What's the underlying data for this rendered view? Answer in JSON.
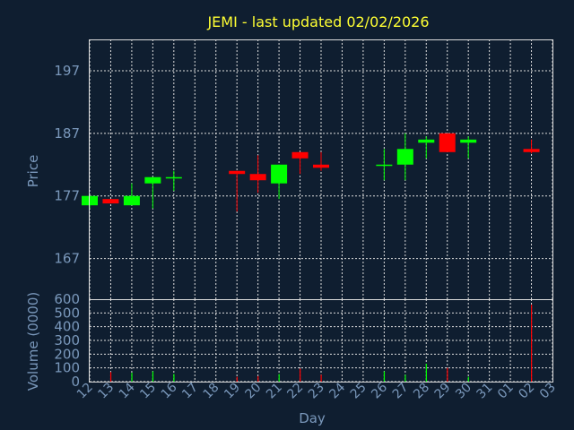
{
  "colors": {
    "background": "#0f1e30",
    "title": "#ffff33",
    "axis_text": "#7a98bb",
    "grid": "#dddddd",
    "up": "#00ff00",
    "down": "#ff0000"
  },
  "chart_data": {
    "type": "candlestick",
    "title": "JEMI - last updated 02/02/2026",
    "xlabel": "Day",
    "price": {
      "ylabel": "Price",
      "ylim": [
        160.5,
        202
      ],
      "ticks": [
        167,
        177,
        187,
        197
      ]
    },
    "volume": {
      "ylabel": "Volume (0000)",
      "ylim": [
        0,
        600
      ],
      "ticks": [
        0,
        100,
        200,
        300,
        400,
        500,
        600
      ]
    },
    "x_tick_labels": [
      "12",
      "13",
      "14",
      "15",
      "16",
      "17",
      "18",
      "19",
      "20",
      "21",
      "22",
      "23",
      "24",
      "25",
      "26",
      "27",
      "28",
      "29",
      "30",
      "31",
      "01",
      "02",
      "03"
    ],
    "candles": [
      {
        "day": "12",
        "open": 175.5,
        "high": 177.0,
        "low": 175.0,
        "close": 177.0,
        "volume": 0
      },
      {
        "day": "13",
        "open": 176.5,
        "high": 176.5,
        "low": 175.8,
        "close": 175.8,
        "volume": 70
      },
      {
        "day": "14",
        "open": 175.5,
        "high": 179.0,
        "low": 175.5,
        "close": 177.0,
        "volume": 65
      },
      {
        "day": "15",
        "open": 179.0,
        "high": 180.0,
        "low": 175.0,
        "close": 180.0,
        "volume": 75
      },
      {
        "day": "16",
        "open": 179.8,
        "high": 181.0,
        "low": 177.8,
        "close": 180.0,
        "volume": 55
      },
      {
        "day": "19",
        "open": 181.0,
        "high": 181.0,
        "low": 174.5,
        "close": 180.5,
        "volume": 35
      },
      {
        "day": "20",
        "open": 180.5,
        "high": 183.5,
        "low": 177.5,
        "close": 179.5,
        "volume": 40
      },
      {
        "day": "21",
        "open": 179.0,
        "high": 182.0,
        "low": 176.5,
        "close": 182.0,
        "volume": 55
      },
      {
        "day": "22",
        "open": 184.0,
        "high": 184.0,
        "low": 180.5,
        "close": 183.0,
        "volume": 95
      },
      {
        "day": "23",
        "open": 182.0,
        "high": 184.0,
        "low": 181.0,
        "close": 181.5,
        "volume": 50
      },
      {
        "day": "26",
        "open": 181.8,
        "high": 184.5,
        "low": 179.5,
        "close": 182.0,
        "volume": 75
      },
      {
        "day": "27",
        "open": 182.0,
        "high": 187.0,
        "low": 179.5,
        "close": 184.5,
        "volume": 50
      },
      {
        "day": "28",
        "open": 185.5,
        "high": 186.5,
        "low": 183.0,
        "close": 186.0,
        "volume": 130
      },
      {
        "day": "29",
        "open": 187.0,
        "high": 187.0,
        "low": 184.0,
        "close": 184.0,
        "volume": 100
      },
      {
        "day": "30",
        "open": 185.5,
        "high": 186.5,
        "low": 183.0,
        "close": 186.0,
        "volume": 35
      },
      {
        "day": "02",
        "open": 184.5,
        "high": 186.0,
        "low": 183.8,
        "close": 184.0,
        "volume": 560
      }
    ]
  }
}
